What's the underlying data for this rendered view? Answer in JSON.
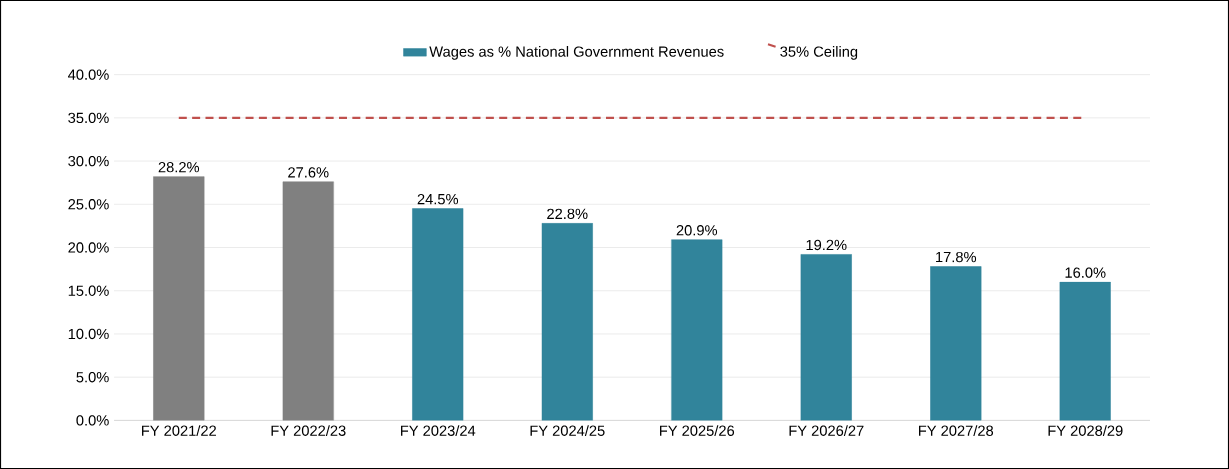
{
  "chart_data": {
    "type": "bar",
    "categories": [
      "FY 2021/22",
      "FY 2022/23",
      "FY 2023/24",
      "FY 2024/25",
      "FY 2025/26",
      "FY 2026/27",
      "FY 2027/28",
      "FY 2028/29"
    ],
    "series": [
      {
        "name": "Wages as % National Government Revenues",
        "color": "#31849b",
        "colors": [
          "#808080",
          "#808080",
          "#31849b",
          "#31849b",
          "#31849b",
          "#31849b",
          "#31849b",
          "#31849b"
        ],
        "values": [
          28.2,
          27.6,
          24.5,
          22.8,
          20.9,
          19.2,
          17.8,
          16.0
        ],
        "value_labels": [
          "28.2%",
          "27.6%",
          "24.5%",
          "22.8%",
          "20.9%",
          "19.2%",
          "17.8%",
          "16.0%"
        ]
      }
    ],
    "ref_lines": [
      {
        "axis": "y",
        "value": 35,
        "label": "35% Ceiling",
        "color": "#c0504d",
        "line_style": "dashed"
      }
    ],
    "ylim": [
      0,
      40
    ],
    "yticks": [
      {
        "value": 0,
        "label": "0.0%"
      },
      {
        "value": 5,
        "label": "5.0%"
      },
      {
        "value": 10,
        "label": "10.0%"
      },
      {
        "value": 15,
        "label": "15.0%"
      },
      {
        "value": 20,
        "label": "20.0%"
      },
      {
        "value": 25,
        "label": "25.0%"
      },
      {
        "value": 30,
        "label": "30.0%"
      },
      {
        "value": 35,
        "label": "35.0%"
      },
      {
        "value": 40,
        "label": "40.0%"
      }
    ],
    "grid": "y",
    "legend": "top"
  }
}
